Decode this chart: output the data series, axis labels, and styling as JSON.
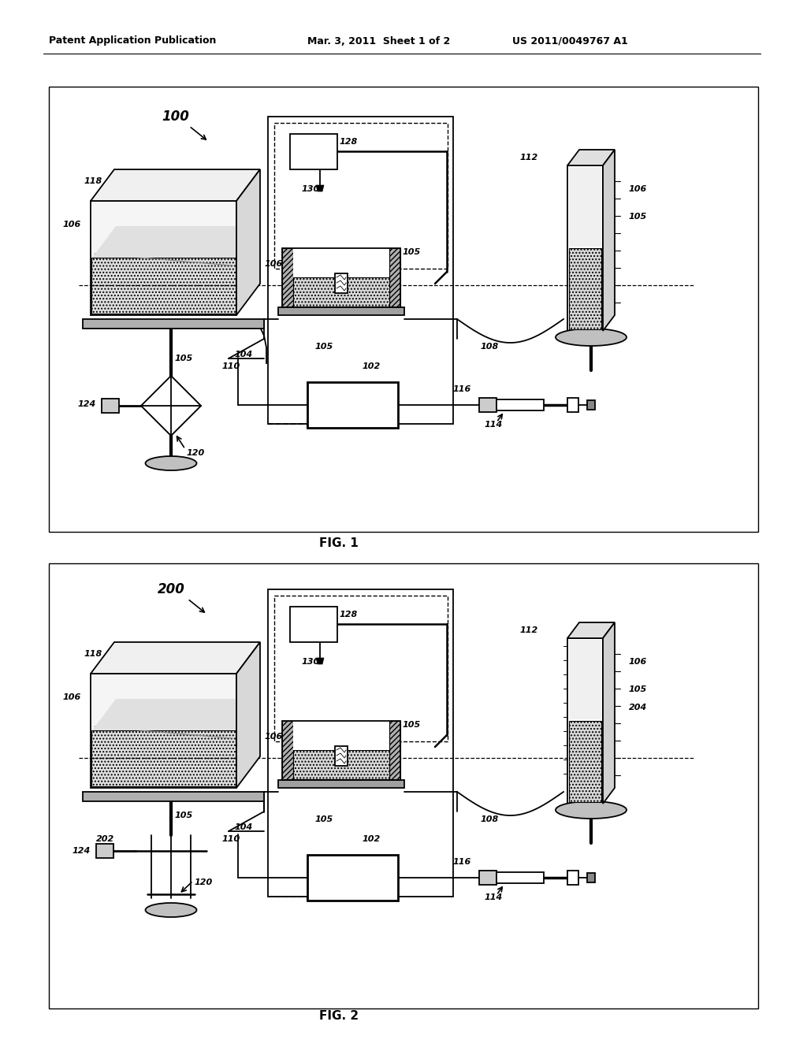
{
  "header_left": "Patent Application Publication",
  "header_mid": "Mar. 3, 2011  Sheet 1 of 2",
  "header_right": "US 2011/0049767 A1",
  "fig1_label": "FIG. 1",
  "fig2_label": "FIG. 2",
  "background": "#ffffff"
}
